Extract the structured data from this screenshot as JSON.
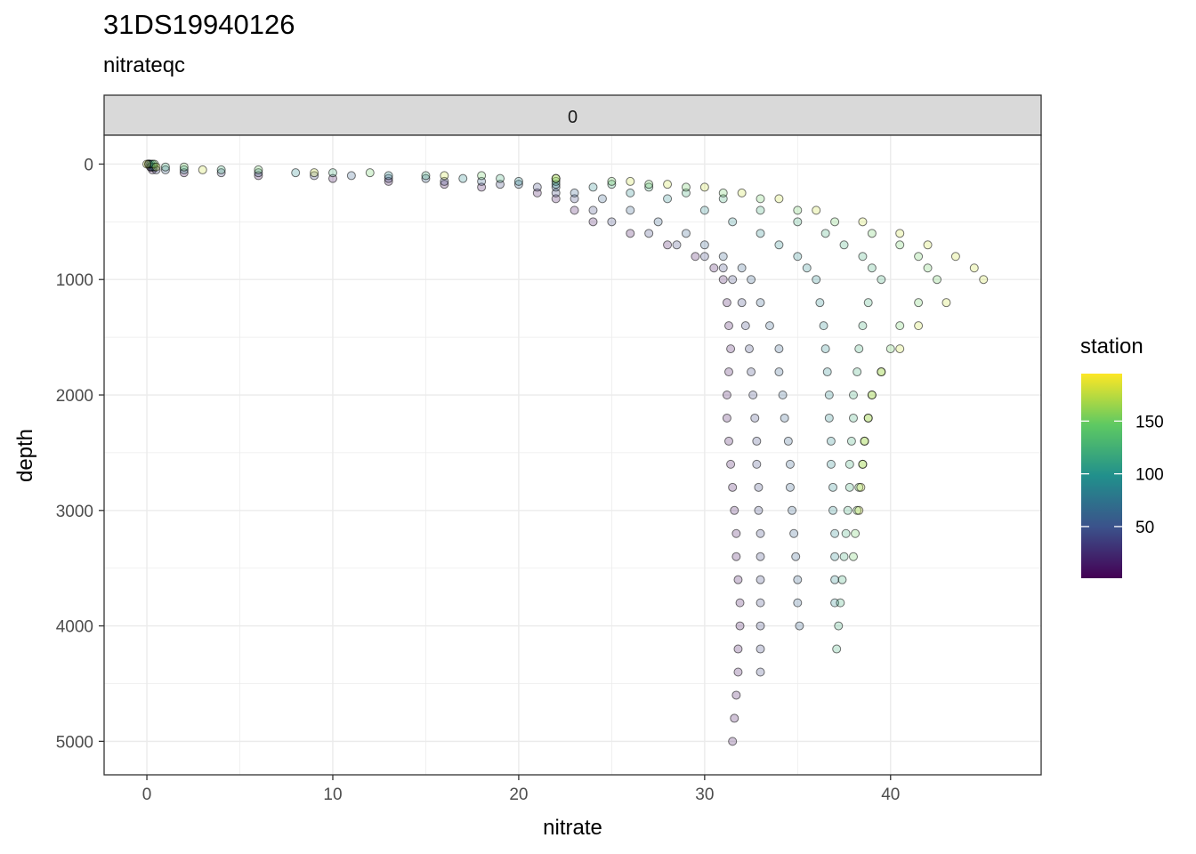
{
  "title": "31DS19940126",
  "subtitle": "nitrateqc",
  "chart_data": {
    "type": "scatter",
    "title": "31DS19940126",
    "subtitle": "nitrateqc",
    "facet_label": "0",
    "xlabel": "nitrate",
    "ylabel": "depth",
    "xlim": [
      -2.3,
      48.1
    ],
    "ylim": [
      5290,
      -250
    ],
    "y_reversed": true,
    "x_ticks": [
      0,
      10,
      20,
      30,
      40
    ],
    "y_ticks": [
      0,
      1000,
      2000,
      3000,
      4000,
      5000
    ],
    "grid": true,
    "point_alpha": 0.25,
    "colorscale": "viridis",
    "legend": {
      "title": "station",
      "position": "right",
      "range": [
        1,
        195
      ],
      "ticks": [
        50,
        100,
        150
      ]
    },
    "profile_depths": [
      0,
      25,
      50,
      75,
      100,
      125,
      150,
      175,
      200,
      250,
      300,
      400,
      500,
      600,
      700,
      800,
      900,
      1000,
      1200,
      1400,
      1600,
      1800,
      2000,
      2200,
      2400,
      2600,
      2800,
      3000,
      3200,
      3400,
      3600,
      3800,
      4000,
      4200,
      4400,
      4600,
      4800,
      5000
    ],
    "sample_profiles": [
      {
        "station": 10,
        "max_depth": 5000,
        "nitrate": [
          0.1,
          0.2,
          0.3,
          2,
          6,
          10,
          13,
          16,
          18,
          21,
          22,
          23,
          24,
          26,
          28,
          29.5,
          30.5,
          31,
          31.2,
          31.3,
          31.4,
          31.3,
          31.2,
          31.2,
          31.3,
          31.4,
          31.5,
          31.6,
          31.7,
          31.7,
          31.8,
          31.9,
          31.9,
          31.8,
          31.8,
          31.7,
          31.6,
          31.5
        ]
      },
      {
        "station": 40,
        "max_depth": 4500,
        "nitrate": [
          0.1,
          0.2,
          0.5,
          4,
          9,
          13,
          16,
          19,
          21,
          22,
          23,
          24,
          25,
          27,
          28.5,
          30,
          31,
          31.5,
          32,
          32.2,
          32.4,
          32.5,
          32.6,
          32.7,
          32.8,
          32.8,
          32.9,
          32.9,
          33,
          33,
          33,
          33,
          33,
          33,
          33
        ]
      },
      {
        "station": 60,
        "max_depth": 4000,
        "nitrate": [
          0.1,
          0.3,
          1,
          6,
          11,
          15,
          18,
          20,
          22,
          23,
          24.5,
          26,
          27.5,
          29,
          30,
          31,
          32,
          32.5,
          33,
          33.5,
          34,
          34,
          34.2,
          34.3,
          34.5,
          34.6,
          34.6,
          34.7,
          34.8,
          34.9,
          35,
          35,
          35.1
        ]
      },
      {
        "station": 90,
        "max_depth": 3800,
        "nitrate": [
          0.2,
          0.4,
          2,
          8,
          13,
          17,
          20,
          22,
          24,
          26,
          28,
          30,
          31.5,
          33,
          34,
          35,
          35.5,
          36,
          36.2,
          36.4,
          36.5,
          36.6,
          36.7,
          36.7,
          36.8,
          36.8,
          36.9,
          36.9,
          37,
          37,
          37,
          37
        ]
      },
      {
        "station": 120,
        "max_depth": 4200,
        "nitrate": [
          0.3,
          1,
          4,
          10,
          15,
          19,
          22,
          25,
          27,
          29,
          31,
          33,
          35,
          36.5,
          37.5,
          38.5,
          39,
          39.5,
          38.8,
          38.5,
          38.3,
          38.2,
          38,
          38,
          37.9,
          37.8,
          37.8,
          37.7,
          37.6,
          37.5,
          37.4,
          37.3,
          37.2,
          37.1
        ]
      },
      {
        "station": 150,
        "max_depth": 3400,
        "nitrate": [
          0.4,
          2,
          6,
          12,
          18,
          22,
          25,
          27,
          29,
          31,
          33,
          35,
          37,
          39,
          40.5,
          41.5,
          42,
          42.5,
          41.5,
          40.5,
          40,
          39.5,
          39,
          38.8,
          38.6,
          38.5,
          38.3,
          38.2,
          38.1,
          38
        ]
      },
      {
        "station": 180,
        "max_depth": 3000,
        "nitrate": [
          0,
          0.5,
          3,
          9,
          16,
          22,
          26,
          28,
          30,
          32,
          34,
          36,
          38.5,
          40.5,
          42,
          43.5,
          44.5,
          45,
          43,
          41.5,
          40.5,
          39.5,
          39,
          38.8,
          38.6,
          38.5,
          38.4,
          38.3
        ]
      }
    ]
  }
}
